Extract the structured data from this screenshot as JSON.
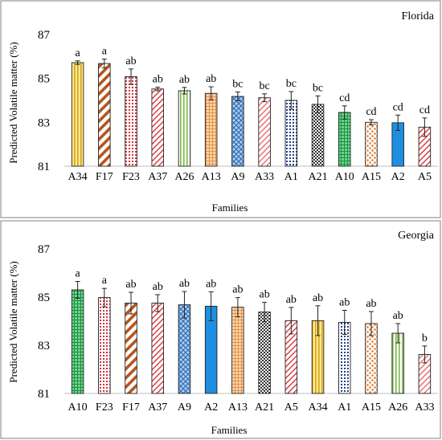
{
  "chart_data": [
    {
      "type": "bar",
      "panel_label": "Florida",
      "xlabel": "Families",
      "ylabel": "Predicted Volatile matter (%)",
      "ylim": [
        81,
        87
      ],
      "yticks": [
        81,
        83,
        85,
        87
      ],
      "grid": false,
      "categories": [
        "A34",
        "F17",
        "F23",
        "A37",
        "A26",
        "A13",
        "A9",
        "A33",
        "A1",
        "A21",
        "A10",
        "A15",
        "A2",
        "A5"
      ],
      "values": [
        85.72,
        85.68,
        85.08,
        84.52,
        84.44,
        84.32,
        84.18,
        84.12,
        84.0,
        83.82,
        83.45,
        83.0,
        82.98,
        82.78
      ],
      "errors": [
        0.08,
        0.2,
        0.35,
        0.08,
        0.15,
        0.3,
        0.2,
        0.18,
        0.4,
        0.38,
        0.3,
        0.12,
        0.35,
        0.42
      ],
      "letters": [
        "a",
        "a",
        "ab",
        "ab",
        "ab",
        "ab",
        "bc",
        "bc",
        "bc",
        "bc",
        "cd",
        "cd",
        "cd",
        "cd"
      ],
      "styles": [
        {
          "pattern": "vlines",
          "color": "#d6a21e",
          "bg": "#fde98c"
        },
        {
          "pattern": "diag-thick",
          "color": "#b5541c",
          "bg": "#ffffff"
        },
        {
          "pattern": "dots-grid",
          "color": "#d7343a",
          "bg": "#ffffff"
        },
        {
          "pattern": "diag-thin",
          "color": "#d7343a",
          "bg": "#ffffff"
        },
        {
          "pattern": "vlines",
          "color": "#7ab648",
          "bg": "#ffffff"
        },
        {
          "pattern": "cross",
          "color": "#e0914a",
          "bg": "#fbd3a8"
        },
        {
          "pattern": "diamond",
          "color": "#2f6fb5",
          "bg": "#aecdf0"
        },
        {
          "pattern": "diag-thin",
          "color": "#e56a6a",
          "bg": "#ffffff"
        },
        {
          "pattern": "dots-grid",
          "color": "#1f3f8a",
          "bg": "#ffffff"
        },
        {
          "pattern": "checker",
          "color": "#333333",
          "bg": "#ffffff"
        },
        {
          "pattern": "cross",
          "color": "#1a8f3f",
          "bg": "#6fd38e"
        },
        {
          "pattern": "dots-big",
          "color": "#e07a2a",
          "bg": "#ffffff"
        },
        {
          "pattern": "solid",
          "color": "#1e8fe0",
          "bg": "#1e8fe0"
        },
        {
          "pattern": "diag-thin",
          "color": "#d7343a",
          "bg": "#ffffff"
        }
      ]
    },
    {
      "type": "bar",
      "panel_label": "Georgia",
      "xlabel": "Families",
      "ylabel": "Predicted Volatile matter (%)",
      "ylim": [
        81,
        87
      ],
      "yticks": [
        81,
        83,
        85,
        87
      ],
      "grid": false,
      "categories": [
        "A10",
        "F23",
        "F17",
        "A37",
        "A9",
        "A2",
        "A13",
        "A21",
        "A5",
        "A34",
        "A1",
        "A15",
        "A26",
        "A33"
      ],
      "values": [
        85.3,
        84.98,
        84.75,
        84.75,
        84.68,
        84.62,
        84.58,
        84.38,
        84.02,
        84.02,
        83.95,
        83.9,
        83.5,
        82.62
      ],
      "errors": [
        0.35,
        0.38,
        0.45,
        0.35,
        0.55,
        0.6,
        0.4,
        0.4,
        0.55,
        0.62,
        0.5,
        0.5,
        0.4,
        0.35
      ],
      "letters": [
        "a",
        "a",
        "ab",
        "ab",
        "ab",
        "ab",
        "ab",
        "ab",
        "ab",
        "ab",
        "ab",
        "ab",
        "ab",
        "b"
      ],
      "styles": [
        {
          "pattern": "cross",
          "color": "#1a8f3f",
          "bg": "#6fd38e"
        },
        {
          "pattern": "dots-grid",
          "color": "#d7343a",
          "bg": "#ffffff"
        },
        {
          "pattern": "diag-thick",
          "color": "#b5541c",
          "bg": "#ffffff"
        },
        {
          "pattern": "diag-thin",
          "color": "#d7343a",
          "bg": "#ffffff"
        },
        {
          "pattern": "diamond",
          "color": "#2f6fb5",
          "bg": "#aecdf0"
        },
        {
          "pattern": "solid",
          "color": "#1e8fe0",
          "bg": "#1e8fe0"
        },
        {
          "pattern": "cross",
          "color": "#e0914a",
          "bg": "#fbd3a8"
        },
        {
          "pattern": "checker",
          "color": "#333333",
          "bg": "#ffffff"
        },
        {
          "pattern": "diag-thin",
          "color": "#d7343a",
          "bg": "#ffffff"
        },
        {
          "pattern": "vlines",
          "color": "#d6a21e",
          "bg": "#fde98c"
        },
        {
          "pattern": "dots-grid",
          "color": "#1f3f8a",
          "bg": "#ffffff"
        },
        {
          "pattern": "dots-big",
          "color": "#e07a2a",
          "bg": "#ffffff"
        },
        {
          "pattern": "vlines",
          "color": "#7ab648",
          "bg": "#ffffff"
        },
        {
          "pattern": "diag-thin",
          "color": "#e56a6a",
          "bg": "#ffffff"
        }
      ]
    }
  ]
}
